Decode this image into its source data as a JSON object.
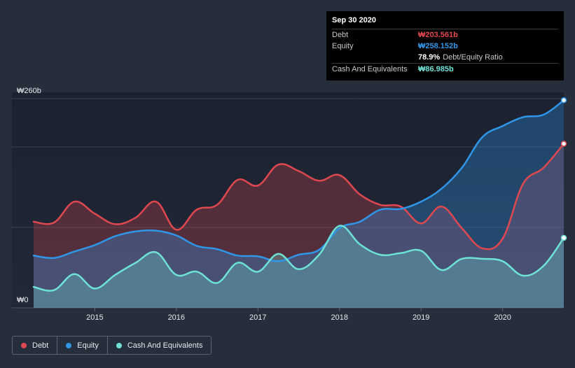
{
  "tooltip": {
    "date": "Sep 30 2020",
    "debt_label": "Debt",
    "debt_value": "₩203.561b",
    "equity_label": "Equity",
    "equity_value": "₩258.152b",
    "ratio_value": "78.9%",
    "ratio_label": "Debt/Equity Ratio",
    "cash_label": "Cash And Equivalents",
    "cash_value": "₩86.985b"
  },
  "colors": {
    "debt": "#e0484f",
    "equity": "#2f96e8",
    "cash": "#6fe2d6",
    "background": "#262e3c",
    "plot_bg": "#1d2330"
  },
  "chart_data": {
    "type": "area",
    "title": "",
    "xlabel": "",
    "ylabel": "",
    "ylim": [
      0,
      260
    ],
    "xlim": [
      2014.25,
      2020.75
    ],
    "y_tick_labels": [
      {
        "value": 260,
        "label": "₩260b"
      },
      {
        "value": 0,
        "label": "₩0"
      }
    ],
    "gridlines_y": [
      0,
      100,
      200,
      260
    ],
    "x_ticks": [
      {
        "value": 2015,
        "label": "2015"
      },
      {
        "value": 2016,
        "label": "2016"
      },
      {
        "value": 2017,
        "label": "2017"
      },
      {
        "value": 2018,
        "label": "2018"
      },
      {
        "value": 2019,
        "label": "2019"
      },
      {
        "value": 2020,
        "label": "2020"
      }
    ],
    "legend_position": "bottom-left",
    "series": [
      {
        "name": "Debt",
        "key": "debt",
        "x": [
          2014.25,
          2014.5,
          2014.75,
          2015.0,
          2015.25,
          2015.5,
          2015.75,
          2016.0,
          2016.25,
          2016.5,
          2016.75,
          2017.0,
          2017.25,
          2017.5,
          2017.75,
          2018.0,
          2018.25,
          2018.5,
          2018.75,
          2019.0,
          2019.25,
          2019.5,
          2019.75,
          2020.0,
          2020.25,
          2020.5,
          2020.75
        ],
        "values": [
          107,
          106,
          132,
          117,
          104,
          112,
          132,
          97,
          122,
          128,
          159,
          152,
          178,
          170,
          158,
          165,
          141,
          128,
          126,
          105,
          126,
          99,
          74,
          86,
          154,
          174,
          204
        ]
      },
      {
        "name": "Equity",
        "key": "equity",
        "x": [
          2014.25,
          2014.5,
          2014.75,
          2015.0,
          2015.25,
          2015.5,
          2015.75,
          2016.0,
          2016.25,
          2016.5,
          2016.75,
          2017.0,
          2017.25,
          2017.5,
          2017.75,
          2018.0,
          2018.25,
          2018.5,
          2018.75,
          2019.0,
          2019.25,
          2019.5,
          2019.75,
          2020.0,
          2020.25,
          2020.5,
          2020.75
        ],
        "values": [
          65,
          62,
          70,
          78,
          89,
          95,
          96,
          90,
          77,
          73,
          65,
          64,
          58,
          66,
          72,
          99,
          107,
          122,
          123,
          132,
          148,
          174,
          212,
          226,
          237,
          240,
          258
        ]
      },
      {
        "name": "Cash And Equivalents",
        "key": "cash",
        "x": [
          2014.25,
          2014.5,
          2014.75,
          2015.0,
          2015.25,
          2015.5,
          2015.75,
          2016.0,
          2016.25,
          2016.5,
          2016.75,
          2017.0,
          2017.25,
          2017.5,
          2017.75,
          2018.0,
          2018.25,
          2018.5,
          2018.75,
          2019.0,
          2019.25,
          2019.5,
          2019.75,
          2020.0,
          2020.25,
          2020.5,
          2020.75
        ],
        "values": [
          26,
          22,
          42,
          24,
          41,
          56,
          69,
          41,
          45,
          31,
          56,
          45,
          67,
          48,
          66,
          102,
          79,
          66,
          68,
          71,
          47,
          61,
          61,
          58,
          40,
          52,
          87
        ]
      }
    ]
  }
}
